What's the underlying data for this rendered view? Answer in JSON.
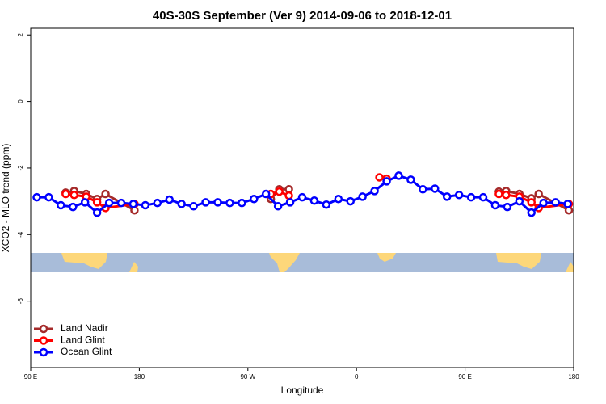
{
  "chart_data": {
    "type": "line",
    "title": "40S-30S September (Ver 9)   2014-09-06 to 2018-12-01",
    "xlabel": "Longitude",
    "ylabel": "XCO2 - MLO trend (ppm)",
    "xlim": [
      90,
      540
    ],
    "ylim": [
      -8,
      2.2
    ],
    "xticks": [
      {
        "value": 90,
        "label": "90 E"
      },
      180,
      {
        "value": 270,
        "label": "90 W"
      },
      {
        "value": 360,
        "label": "0"
      },
      {
        "value": 450,
        "label": "90 E"
      },
      {
        "value": 540,
        "label": "180"
      }
    ],
    "yticks": [
      2,
      0,
      -2,
      -4,
      -6
    ],
    "legend": "bottom-left",
    "series": [
      {
        "name": "Land Nadir",
        "color": "#a52a2a",
        "x": [
          119,
          126,
          136,
          145,
          152,
          176,
          null,
          289,
          296,
          304,
          null,
          478,
          484,
          495,
          505,
          511,
          536
        ],
        "values": [
          -2.74,
          -2.69,
          -2.78,
          -2.93,
          -2.78,
          -3.27,
          null,
          -2.93,
          -2.64,
          -2.64,
          null,
          -2.71,
          -2.69,
          -2.78,
          -2.91,
          -2.78,
          -3.27
        ]
      },
      {
        "name": "Land Glint",
        "color": "#ff0000",
        "x": [
          119,
          126,
          136,
          145,
          152,
          176,
          null,
          289,
          296,
          304,
          null,
          379,
          385,
          null,
          478,
          484,
          495,
          505,
          511,
          536
        ],
        "values": [
          -2.78,
          -2.81,
          -2.86,
          -3.03,
          -3.2,
          -3.08,
          null,
          -2.78,
          -2.71,
          -2.83,
          null,
          -2.28,
          -2.32,
          null,
          -2.78,
          -2.81,
          -2.86,
          -3.03,
          -3.2,
          -3.08
        ]
      },
      {
        "name": "Ocean Glint",
        "color": "#0000ff",
        "x": [
          95,
          105,
          115,
          125,
          135,
          145,
          155,
          165,
          175,
          185,
          195,
          205,
          215,
          225,
          235,
          245,
          255,
          265,
          275,
          285,
          295,
          305,
          315,
          325,
          335,
          345,
          355,
          365,
          375,
          385,
          395,
          405,
          415,
          425,
          435,
          445,
          455,
          465,
          475,
          485,
          495,
          505,
          515,
          525,
          535
        ],
        "values": [
          -2.88,
          -2.88,
          -3.12,
          -3.17,
          -3.03,
          -3.34,
          -3.05,
          -3.05,
          -3.08,
          -3.12,
          -3.05,
          -2.95,
          -3.08,
          -3.15,
          -3.03,
          -3.03,
          -3.05,
          -3.05,
          -2.93,
          -2.78,
          -3.15,
          -3.03,
          -2.88,
          -2.98,
          -3.1,
          -2.93,
          -3.0,
          -2.86,
          -2.69,
          -2.4,
          -2.23,
          -2.35,
          -2.64,
          -2.62,
          -2.86,
          -2.81,
          -2.88,
          -2.88,
          -3.12,
          -3.17,
          -3.0,
          -3.34,
          -3.05,
          -3.03,
          -3.08
        ]
      }
    ]
  }
}
